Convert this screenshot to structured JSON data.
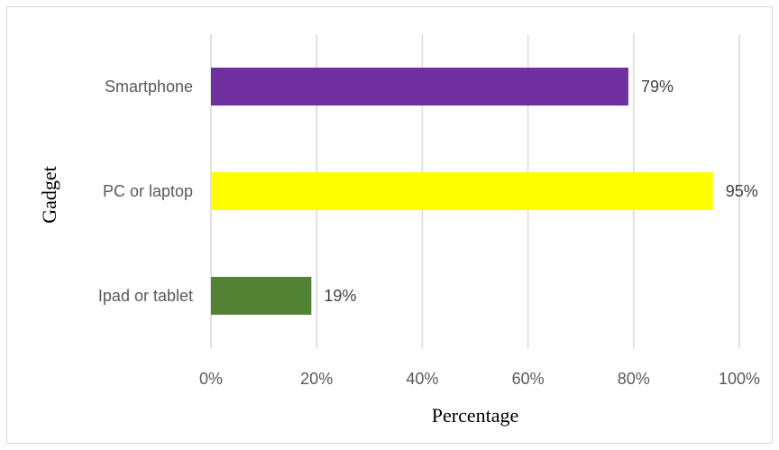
{
  "chart_data": {
    "type": "bar",
    "orientation": "horizontal",
    "title": "",
    "xlabel": "Percentage",
    "ylabel": "Gadget",
    "categories": [
      "Smartphone",
      "PC or laptop",
      "Ipad or tablet"
    ],
    "values": [
      79,
      95,
      19
    ],
    "value_labels": [
      "79%",
      "95%",
      "19%"
    ],
    "bar_colors": [
      "#7030a0",
      "#ffff00",
      "#548235"
    ],
    "xlim": [
      0,
      100
    ],
    "x_ticks": [
      0,
      20,
      40,
      60,
      80,
      100
    ],
    "x_tick_labels": [
      "0%",
      "20%",
      "40%",
      "60%",
      "80%",
      "100%"
    ],
    "grid": "vertical",
    "legend": "none"
  }
}
